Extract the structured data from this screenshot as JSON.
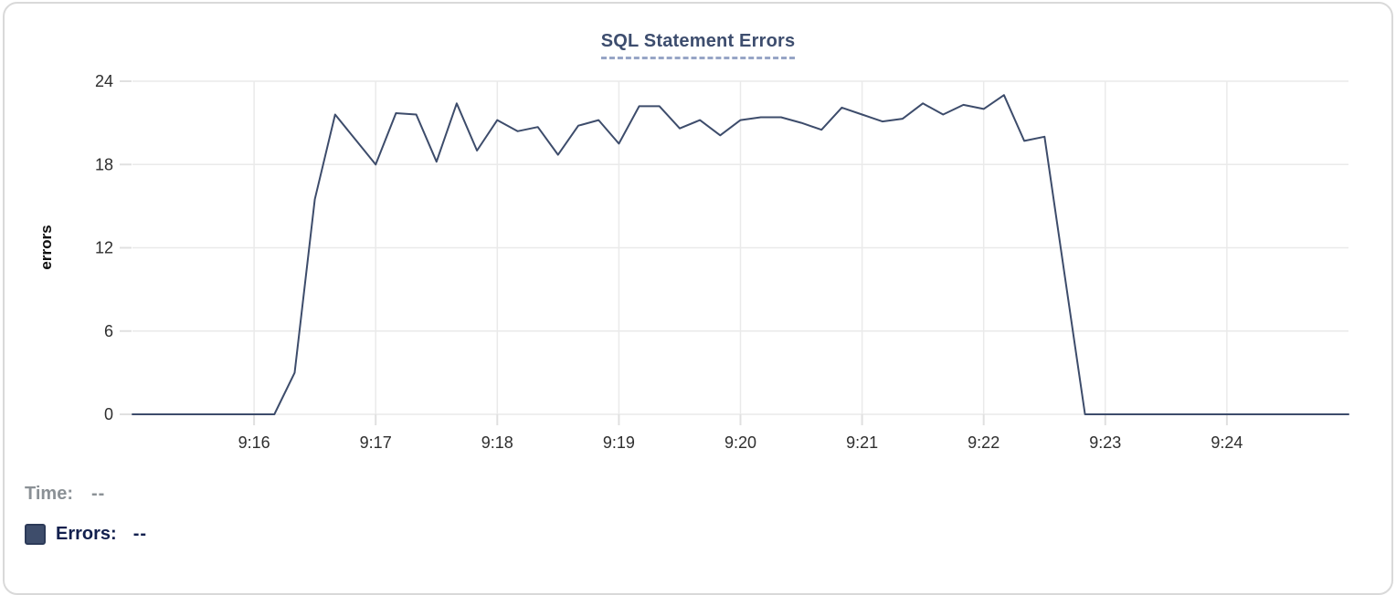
{
  "card": {
    "title": "SQL Statement Errors"
  },
  "legend": {
    "time_label": "Time:",
    "time_value": "--",
    "errors_label": "Errors:",
    "errors_value": "--"
  },
  "colors": {
    "line": "#3d4c6b",
    "swatch_fill": "#3e4d6b",
    "swatch_border": "#2c3a58",
    "title_text": "#3d4d6e",
    "title_underline": "#97a5c6",
    "grid": "#eaeaea",
    "tick": "#e0e0e0",
    "axis_text": "#2e2e2e",
    "card_border": "#d9d9d9"
  },
  "chart_data": {
    "type": "line",
    "title": "SQL Statement Errors",
    "xlabel": "",
    "ylabel": "errors",
    "ylim": [
      0,
      24
    ],
    "y_ticks": [
      0,
      6,
      12,
      18,
      24
    ],
    "grid": true,
    "legend_position": "bottom-left",
    "x_axis": {
      "start_time": "9:15:00",
      "end_time": "9:25:00",
      "tick_labels": [
        "9:16",
        "9:17",
        "9:18",
        "9:19",
        "9:20",
        "9:21",
        "9:22",
        "9:23",
        "9:24"
      ],
      "tick_interval_seconds": 60
    },
    "series": [
      {
        "name": "Errors",
        "color": "#3d4c6b",
        "sample_interval_seconds": 10,
        "first_sample_time": "9:15:00",
        "values": [
          0,
          0,
          0,
          0,
          0,
          0,
          0,
          0,
          3,
          15.5,
          21.6,
          19.8,
          18,
          21.7,
          21.6,
          18.2,
          22.4,
          19,
          21.2,
          20.4,
          20.7,
          18.7,
          20.8,
          21.2,
          19.5,
          22.2,
          22.2,
          20.6,
          21.2,
          20.1,
          21.2,
          21.4,
          21.4,
          21.0,
          20.5,
          22.1,
          21.6,
          21.1,
          21.3,
          22.4,
          21.6,
          22.3,
          22.0,
          23.0,
          19.7,
          20.0,
          10,
          0,
          0,
          0,
          0,
          0,
          0,
          0,
          0,
          0,
          0,
          0,
          0,
          0,
          0
        ]
      }
    ]
  }
}
